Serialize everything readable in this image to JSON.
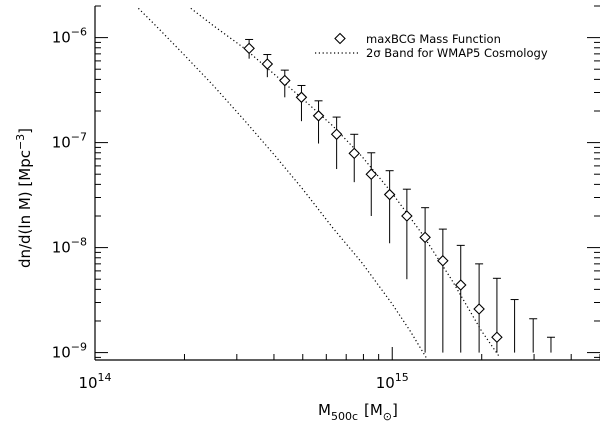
{
  "chart_data": {
    "type": "scatter",
    "xlabel": "M",
    "xlabel_sub": "500c",
    "xlabel_unit": "[M",
    "xlabel_unit_sub": "⊙",
    "xlabel_unit_close": "]",
    "ylabel": "dn/d(ln M)  [Mpc",
    "ylabel_sup": "−3",
    "ylabel_close": "]",
    "xscale": "log",
    "yscale": "log",
    "xlim": [
      100000000000000.0,
      5000000000000000.0
    ],
    "ylim": [
      8.5e-10,
      2e-06
    ],
    "x_ticks": [
      {
        "value": 100000000000000.0,
        "base": "10",
        "exp": "14"
      },
      {
        "value": 1000000000000000.0,
        "base": "10",
        "exp": "15"
      }
    ],
    "y_ticks": [
      {
        "value": 1e-09,
        "base": "10",
        "exp": "−9"
      },
      {
        "value": 1e-08,
        "base": "10",
        "exp": "−8"
      },
      {
        "value": 1e-07,
        "base": "10",
        "exp": "−7"
      },
      {
        "value": 1e-06,
        "base": "10",
        "exp": "−6"
      }
    ],
    "legend_position": "top-right",
    "legend": [
      {
        "label": "maxBCG Mass Function",
        "style": "diamond"
      },
      {
        "label_pre": "2",
        "label_sigma": "σ",
        "label_post": " Band for WMAP5 Cosmology",
        "style": "dotted"
      }
    ],
    "series": [
      {
        "style": "diamond-errorbars",
        "points": [
          {
            "x": 330000000000000.0,
            "y": 7.9e-07,
            "ylo": 6.3e-07,
            "yhi": 9.6e-07
          },
          {
            "x": 380000000000000.0,
            "y": 5.6e-07,
            "ylo": 4.2e-07,
            "yhi": 6.9e-07
          },
          {
            "x": 435000000000000.0,
            "y": 3.9e-07,
            "ylo": 2.7e-07,
            "yhi": 4.9e-07
          },
          {
            "x": 495000000000000.0,
            "y": 2.7e-07,
            "ylo": 1.6e-07,
            "yhi": 3.5e-07
          },
          {
            "x": 565000000000000.0,
            "y": 1.8e-07,
            "ylo": 9.8e-08,
            "yhi": 2.5e-07
          },
          {
            "x": 650000000000000.0,
            "y": 1.2e-07,
            "ylo": 5.6e-08,
            "yhi": 1.75e-07
          },
          {
            "x": 745000000000000.0,
            "y": 7.9e-08,
            "ylo": 4.2e-08,
            "yhi": 1.2e-07
          },
          {
            "x": 850000000000000.0,
            "y": 5e-08,
            "ylo": 2e-08,
            "yhi": 8e-08
          },
          {
            "x": 980000000000000.0,
            "y": 3.2e-08,
            "ylo": 1.1e-08,
            "yhi": 5.4e-08
          },
          {
            "x": 1120000000000000.0,
            "y": 2e-08,
            "ylo": 5e-09,
            "yhi": 3.6e-08
          },
          {
            "x": 1290000000000000.0,
            "y": 1.25e-08,
            "ylo": 1e-09,
            "yhi": 2.4e-08
          },
          {
            "x": 1480000000000000.0,
            "y": 7.5e-09,
            "ylo": 1e-09,
            "yhi": 1.5e-08
          },
          {
            "x": 1700000000000000.0,
            "y": 4.4e-09,
            "ylo": 1e-09,
            "yhi": 1.05e-08
          },
          {
            "x": 1960000000000000.0,
            "y": 2.6e-09,
            "ylo": 1e-09,
            "yhi": 7e-09
          },
          {
            "x": 2250000000000000.0,
            "y": 1.4e-09,
            "ylo": 1e-09,
            "yhi": 5.1e-09
          },
          {
            "x": 2580000000000000.0,
            "y": null,
            "ylo": 1e-09,
            "yhi": 3.2e-09
          },
          {
            "x": 2980000000000000.0,
            "y": null,
            "ylo": 1e-09,
            "yhi": 2.1e-09
          },
          {
            "x": 3420000000000000.0,
            "y": null,
            "ylo": 1e-09,
            "yhi": 1.4e-09
          }
        ]
      },
      {
        "style": "dotted",
        "x": [
          140000000000000.0,
          160000000000000.0,
          200000000000000.0,
          250000000000000.0,
          320000000000000.0,
          400000000000000.0,
          500000000000000.0,
          630000000000000.0,
          790000000000000.0,
          1000000000000000.0,
          1150000000000000.0,
          1300000000000000.0
        ],
        "y": [
          1.9e-06,
          1.3e-06,
          6.8e-07,
          3.5e-07,
          1.6e-07,
          7.7e-08,
          3.6e-08,
          1.55e-08,
          7.2e-09,
          2.9e-09,
          1.6e-09,
          9e-10
        ]
      },
      {
        "style": "dotted",
        "x": [
          210000000000000.0,
          250000000000000.0,
          320000000000000.0,
          400000000000000.0,
          500000000000000.0,
          630000000000000.0,
          790000000000000.0,
          1000000000000000.0,
          1260000000000000.0,
          1580000000000000.0,
          2000000000000000.0,
          2300000000000000.0
        ],
        "y": [
          1.9e-06,
          1.3e-06,
          7.8e-07,
          4.5e-07,
          2.6e-07,
          1.45e-07,
          7.4e-08,
          3.3e-08,
          1.35e-08,
          5e-09,
          1.6e-09,
          9e-10
        ]
      }
    ]
  }
}
